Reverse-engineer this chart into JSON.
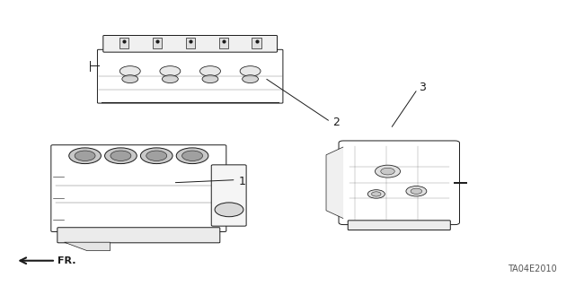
{
  "bg_color": "#ffffff",
  "line_color": "#1a1a1a",
  "label_color": "#1a1a1a",
  "diagram_code": "TA04E2010",
  "fr_label": "FR.",
  "label_fontsize": 9,
  "code_fontsize": 7,
  "fr_fontsize": 8,
  "figsize": [
    6.4,
    3.19
  ],
  "dpi": 100
}
